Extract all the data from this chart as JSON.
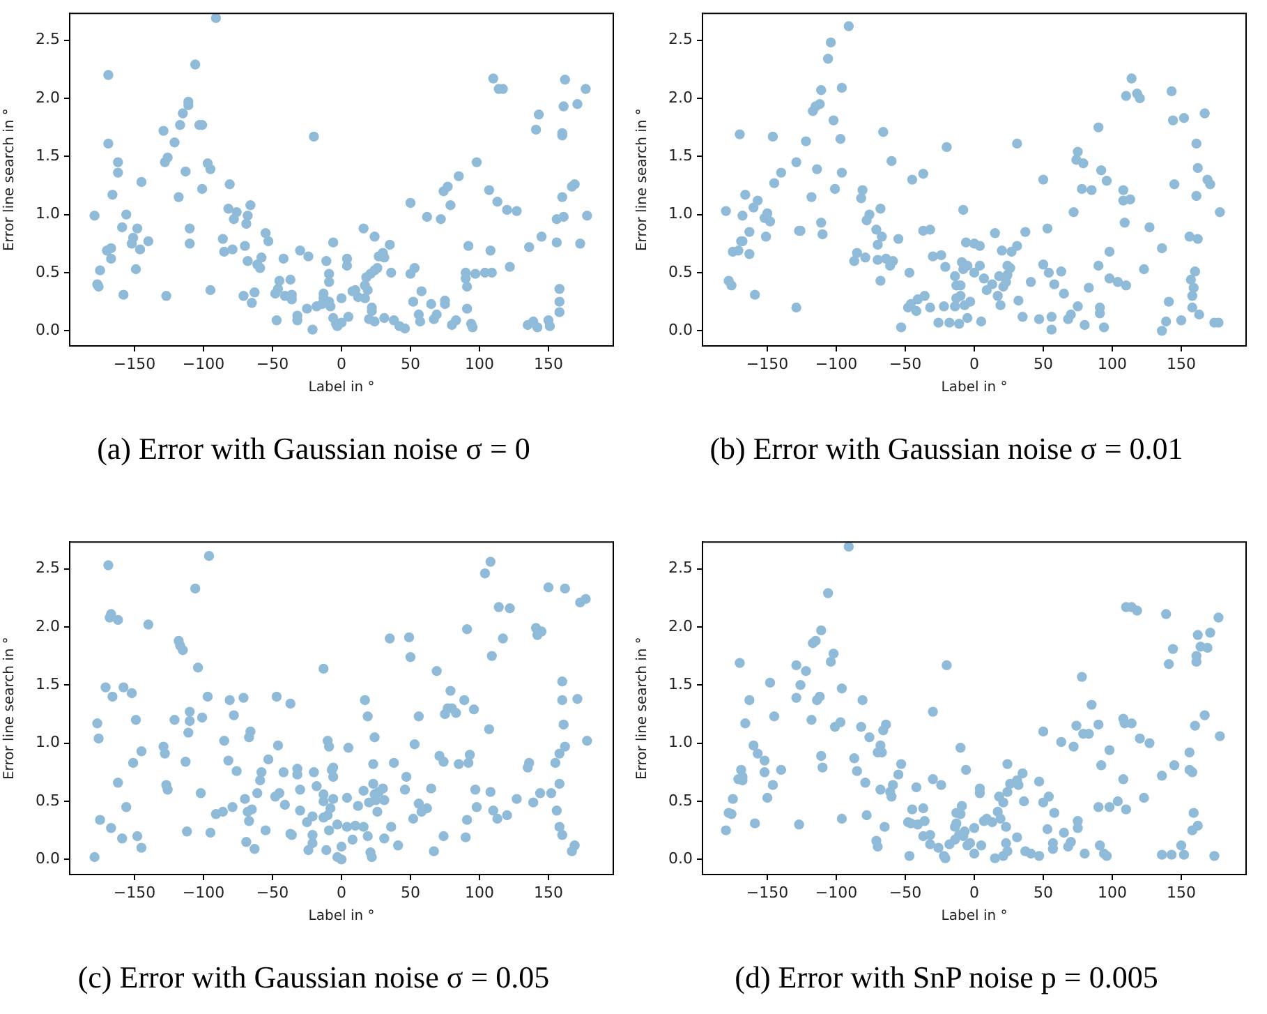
{
  "chart_data": [
    {
      "type": "scatter",
      "title": "(a) Error with Gaussian noise σ = 0",
      "xlabel": "Label in °",
      "ylabel": "Error line search in °",
      "marker": "circle",
      "grid": false,
      "xlim": [
        -197,
        197
      ],
      "xticks": [
        {
          "value": -150,
          "label": "−150"
        },
        {
          "value": -100,
          "label": "−100"
        },
        {
          "value": -50,
          "label": "−50"
        },
        0,
        50,
        100,
        150
      ],
      "ylim": [
        -0.13,
        2.73
      ],
      "yticks": [
        {
          "value": 0,
          "label": "0.0"
        },
        0.5,
        {
          "value": 1,
          "label": "1.0"
        },
        1.5,
        {
          "value": 2,
          "label": "2.0"
        },
        2.5
      ],
      "series": [
        {
          "color": "#8fbbd9",
          "x": [
            -179,
            -169,
            -169,
            -162,
            -162,
            -166,
            -177,
            -176,
            -175,
            -170,
            -167,
            -167,
            -158,
            -159,
            -156,
            -152,
            -151,
            -148,
            -149,
            -146,
            -145,
            -140,
            -129,
            -128,
            -126,
            -127,
            -121,
            -117,
            -118,
            -115,
            -113,
            -111,
            -111,
            -110,
            -110,
            -106,
            -103,
            -101,
            -101,
            -97,
            -95,
            -95,
            -91,
            -86,
            -85,
            -82,
            -81,
            -79,
            -78,
            -76,
            -71,
            -70,
            -69,
            -68,
            -68,
            -66,
            -65,
            -63,
            -61,
            -59,
            -58,
            -55,
            -53,
            -48,
            -47,
            -46,
            -45,
            -42,
            -41,
            -37,
            -36,
            -36,
            -32,
            -32,
            -30,
            -25,
            -24,
            -21,
            -20,
            -18,
            -13,
            -13,
            -14,
            -11,
            -9,
            -8,
            -9,
            -9,
            -6,
            -6,
            -4,
            -3,
            0,
            0,
            4,
            4,
            5,
            8,
            10,
            12,
            16,
            17,
            17,
            19,
            18,
            20,
            21,
            22,
            22,
            24,
            24,
            24,
            26,
            27,
            30,
            31,
            31,
            35,
            36,
            38,
            42,
            46,
            50,
            50,
            53,
            52,
            56,
            57,
            58,
            62,
            65,
            67,
            69,
            72,
            74,
            75,
            75,
            77,
            79,
            80,
            83,
            85,
            90,
            90,
            91,
            91,
            92,
            94,
            95,
            98,
            97,
            104,
            107,
            108,
            109,
            110,
            113,
            114,
            117,
            120,
            122,
            127,
            135,
            136,
            139,
            141,
            142,
            143,
            145,
            150,
            151,
            156,
            156,
            158,
            158,
            158,
            160,
            160,
            160,
            161,
            161,
            162,
            167,
            169,
            171,
            173,
            177,
            178
          ],
          "values": [
            0.99,
            2.2,
            1.61,
            1.45,
            1.36,
            1.17,
            0.4,
            0.38,
            0.52,
            0.69,
            0.71,
            0.62,
            0.31,
            0.89,
            1.0,
            0.75,
            0.8,
            0.88,
            0.53,
            0.7,
            1.28,
            0.77,
            1.72,
            1.45,
            1.49,
            0.3,
            1.62,
            1.77,
            1.15,
            1.87,
            1.37,
            1.97,
            1.94,
            0.88,
            0.75,
            2.29,
            1.77,
            1.77,
            1.22,
            1.44,
            1.39,
            0.35,
            2.69,
            0.79,
            0.68,
            1.05,
            1.26,
            0.7,
            0.96,
            1.02,
            0.3,
            0.73,
            0.92,
            0.99,
            0.6,
            1.08,
            0.24,
            0.33,
            0.57,
            0.54,
            0.63,
            0.84,
            0.77,
            0.32,
            0.09,
            0.36,
            0.43,
            0.62,
            0.3,
            0.44,
            0.31,
            0.27,
            0.13,
            0.09,
            0.69,
            0.19,
            0.64,
            0.01,
            1.67,
            0.21,
            0.32,
            0.28,
            0.23,
            0.6,
            0.25,
            0.21,
            0.49,
            0.42,
            0.76,
            0.11,
            0.06,
            0.04,
            0.07,
            0.28,
            0.62,
            0.56,
            0.12,
            0.34,
            0.35,
            0.29,
            0.88,
            0.39,
            0.28,
            0.35,
            0.46,
            0.1,
            0.49,
            0.2,
            0.17,
            0.81,
            0.08,
            0.52,
            0.54,
            0.64,
            0.67,
            0.63,
            0.11,
            0.74,
            0.5,
            0.09,
            0.04,
            0.02,
            1.1,
            0.49,
            0.54,
            0.25,
            0.14,
            0.08,
            0.34,
            0.98,
            0.23,
            0.1,
            0.14,
            0.96,
            1.2,
            0.26,
            0.23,
            1.24,
            1.08,
            0.05,
            0.09,
            1.33,
            0.5,
            0.45,
            0.38,
            0.19,
            0.73,
            0.06,
            0.03,
            1.45,
            0.49,
            0.5,
            1.21,
            0.69,
            0.5,
            2.17,
            1.11,
            2.08,
            2.08,
            1.04,
            0.55,
            1.03,
            0.05,
            0.72,
            0.08,
            1.73,
            0.03,
            1.86,
            0.81,
            0.09,
            0.04,
            0.76,
            0.96,
            0.25,
            0.16,
            0.36,
            1.15,
            1.7,
            1.68,
            1.93,
            0.98,
            2.16,
            1.24,
            1.26,
            1.95,
            0.75,
            2.08,
            0.99
          ]
        }
      ]
    },
    {
      "type": "scatter",
      "title": "(b) Error with Gaussian noise σ = 0.01",
      "xlabel": "Label in °",
      "ylabel": "Error line search in °",
      "marker": "circle",
      "grid": false,
      "xlim": [
        -197,
        197
      ],
      "xticks": [
        {
          "value": -150,
          "label": "−150"
        },
        {
          "value": -100,
          "label": "−100"
        },
        {
          "value": -50,
          "label": "−50"
        },
        0,
        50,
        100,
        150
      ],
      "ylim": [
        -0.13,
        2.73
      ],
      "yticks": [
        {
          "value": 0,
          "label": "0.0"
        },
        0.5,
        {
          "value": 1,
          "label": "1.0"
        },
        1.5,
        {
          "value": 2,
          "label": "2.0"
        },
        2.5
      ],
      "series": [
        {
          "color": "#8fbbd9",
          "x": [
            -180,
            -178,
            -176,
            -175,
            -171,
            -170,
            -169,
            -168,
            -168,
            -166,
            -163,
            -163,
            -160,
            -159,
            -157,
            -151,
            -152,
            -150,
            -148,
            -146,
            -145,
            -140,
            -129,
            -129,
            -127,
            -126,
            -122,
            -118,
            -117,
            -115,
            -114,
            -112,
            -111,
            -111,
            -110,
            -106,
            -104,
            -102,
            -101,
            -97,
            -96,
            -96,
            -91,
            -87,
            -85,
            -82,
            -81,
            -79,
            -78,
            -76,
            -71,
            -70,
            -70,
            -68,
            -68,
            -67,
            -66,
            -64,
            -61,
            -60,
            -59,
            -55,
            -53,
            -48,
            -47,
            -46,
            -45,
            -42,
            -41,
            -37,
            -37,
            -36,
            -32,
            -32,
            -30,
            -26,
            -24,
            -22,
            -21,
            -20,
            -18,
            -14,
            -14,
            -13,
            -13,
            -11,
            -10,
            -10,
            -9,
            -8,
            -8,
            -7,
            -6,
            -5,
            -5,
            -3,
            0,
            0,
            4,
            4,
            5,
            7,
            9,
            13,
            15,
            17,
            18,
            19,
            20,
            21,
            23,
            24,
            24,
            26,
            27,
            31,
            31,
            32,
            35,
            37,
            41,
            47,
            50,
            50,
            53,
            54,
            56,
            56,
            58,
            63,
            65,
            68,
            70,
            72,
            74,
            75,
            75,
            78,
            79,
            80,
            83,
            85,
            90,
            90,
            91,
            91,
            92,
            94,
            96,
            98,
            98,
            104,
            108,
            108,
            109,
            110,
            110,
            113,
            114,
            118,
            120,
            123,
            127,
            136,
            136,
            139,
            141,
            143,
            144,
            145,
            150,
            152,
            156,
            157,
            158,
            158,
            159,
            160,
            161,
            161,
            162,
            162,
            163,
            167,
            169,
            171,
            174,
            177,
            178
          ],
          "values": [
            1.03,
            0.43,
            0.39,
            0.68,
            0.69,
            1.69,
            0.77,
            0.99,
            0.77,
            1.17,
            0.66,
            0.85,
            1.06,
            0.31,
            1.12,
            0.81,
            0.97,
            1.01,
            0.94,
            1.67,
            1.27,
            1.36,
            0.2,
            1.45,
            0.86,
            0.86,
            1.63,
            1.15,
            1.89,
            1.93,
            1.39,
            1.95,
            2.07,
            0.93,
            0.83,
            2.34,
            2.48,
            1.81,
            1.22,
            1.65,
            2.09,
            1.36,
            2.62,
            0.6,
            0.67,
            1.14,
            1.21,
            0.63,
            0.95,
            1.0,
            0.87,
            0.61,
            0.74,
            0.43,
            1.05,
            0.81,
            1.71,
            0.62,
            0.56,
            1.46,
            0.6,
            0.79,
            0.03,
            0.2,
            0.5,
            0.23,
            1.3,
            0.17,
            0.27,
            0.86,
            1.35,
            0.3,
            0.2,
            0.87,
            0.64,
            0.07,
            0.65,
            0.21,
            0.55,
            1.58,
            0.07,
            0.47,
            0.21,
            0.39,
            0.28,
            0.06,
            0.39,
            0.3,
            0.59,
            0.53,
            1.04,
            0.22,
            0.76,
            0.11,
            0.56,
            0.25,
            0.75,
            0.5,
            0.73,
            0.56,
            0.08,
            0.45,
            0.35,
            0.4,
            0.84,
            0.3,
            0.47,
            0.22,
            0.69,
            0.38,
            0.42,
            0.56,
            0.48,
            0.54,
            0.68,
            0.73,
            1.61,
            0.26,
            0.12,
            0.85,
            0.42,
            0.1,
            0.57,
            1.3,
            0.88,
            0.5,
            0.01,
            0.12,
            0.4,
            0.51,
            0.32,
            0.1,
            0.14,
            1.02,
            1.47,
            1.54,
            0.21,
            1.22,
            1.44,
            0.05,
            0.37,
            1.21,
            1.75,
            0.56,
            0.2,
            0.15,
            1.38,
            0.03,
            1.29,
            0.68,
            0.45,
            0.42,
            1.21,
            1.12,
            0.93,
            0.39,
            2.02,
            1.13,
            2.17,
            2.04,
            2.0,
            0.53,
            0.89,
            0.0,
            0.71,
            0.08,
            0.25,
            2.06,
            1.81,
            1.26,
            0.09,
            1.83,
            0.81,
            0.44,
            0.3,
            0.2,
            0.37,
            0.51,
            1.61,
            1.16,
            0.79,
            1.4,
            0.14,
            1.87,
            1.3,
            1.26,
            0.07,
            0.07,
            1.02
          ]
        }
      ]
    },
    {
      "type": "scatter",
      "title": "(c) Error with Gaussian noise σ = 0.05",
      "xlabel": "Label in °",
      "ylabel": "Error line search in °",
      "marker": "circle",
      "grid": false,
      "xlim": [
        -197,
        197
      ],
      "xticks": [
        {
          "value": -150,
          "label": "−150"
        },
        {
          "value": -100,
          "label": "−100"
        },
        {
          "value": -50,
          "label": "−50"
        },
        0,
        50,
        100,
        150
      ],
      "ylim": [
        -0.13,
        2.73
      ],
      "yticks": [
        {
          "value": 0,
          "label": "0.0"
        },
        0.5,
        {
          "value": 1,
          "label": "1.0"
        },
        1.5,
        {
          "value": 2,
          "label": "2.0"
        },
        2.5
      ],
      "series": [
        {
          "color": "#8fbbd9",
          "x": [
            -179,
            -177,
            -176,
            -175,
            -171,
            -169,
            -168,
            -167,
            -167,
            -166,
            -162,
            -162,
            -159,
            -158,
            -156,
            -152,
            -151,
            -149,
            -148,
            -145,
            -145,
            -140,
            -129,
            -128,
            -127,
            -126,
            -121,
            -118,
            -117,
            -115,
            -113,
            -112,
            -111,
            -110,
            -110,
            -106,
            -104,
            -102,
            -101,
            -97,
            -96,
            -95,
            -91,
            -86,
            -85,
            -82,
            -81,
            -79,
            -78,
            -76,
            -71,
            -70,
            -69,
            -68,
            -67,
            -67,
            -66,
            -65,
            -63,
            -61,
            -59,
            -58,
            -55,
            -53,
            -48,
            -47,
            -46,
            -45,
            -42,
            -41,
            -37,
            -37,
            -36,
            -32,
            -32,
            -30,
            -30,
            -25,
            -24,
            -21,
            -21,
            -21,
            -20,
            -18,
            -13,
            -13,
            -13,
            -13,
            -11,
            -10,
            -10,
            -9,
            -9,
            -8,
            -7,
            -6,
            -6,
            -6,
            -3,
            -3,
            0,
            0,
            5,
            4,
            4,
            8,
            10,
            12,
            16,
            16,
            17,
            19,
            19,
            20,
            21,
            22,
            23,
            23,
            24,
            24,
            25,
            26,
            27,
            30,
            31,
            31,
            35,
            36,
            38,
            41,
            47,
            46,
            49,
            50,
            53,
            52,
            56,
            56,
            58,
            62,
            65,
            67,
            69,
            71,
            74,
            74,
            75,
            77,
            79,
            80,
            83,
            85,
            89,
            90,
            91,
            91,
            92,
            93,
            96,
            97,
            98,
            104,
            107,
            108,
            108,
            109,
            110,
            113,
            114,
            117,
            120,
            122,
            127,
            135,
            136,
            139,
            141,
            142,
            144,
            145,
            150,
            152,
            155,
            156,
            158,
            158,
            158,
            160,
            160,
            160,
            161,
            162,
            162,
            167,
            169,
            171,
            173,
            177,
            178
          ],
          "values": [
            0.02,
            1.17,
            1.04,
            0.34,
            1.48,
            2.53,
            2.08,
            2.11,
            0.27,
            1.4,
            2.06,
            0.66,
            0.18,
            1.48,
            0.45,
            1.43,
            0.83,
            1.2,
            0.2,
            0.1,
            0.93,
            2.02,
            0.97,
            0.91,
            0.64,
            0.6,
            1.2,
            1.88,
            1.84,
            1.8,
            0.84,
            0.24,
            1.09,
            1.19,
            1.27,
            2.33,
            1.65,
            0.57,
            1.22,
            1.4,
            2.61,
            0.23,
            0.39,
            0.41,
            1.02,
            0.85,
            1.37,
            0.45,
            1.24,
            0.76,
            1.39,
            0.52,
            0.15,
            0.41,
            1.05,
            0.33,
            1.1,
            0.43,
            0.09,
            0.57,
            0.68,
            0.75,
            0.25,
            0.86,
            0.54,
            1.4,
            0.98,
            0.57,
            0.75,
            0.47,
            1.34,
            0.22,
            0.21,
            0.78,
            0.73,
            0.6,
            0.42,
            0.32,
            0.08,
            0.37,
            0.21,
            0.14,
            0.75,
            0.63,
            1.64,
            0.56,
            0.5,
            0.36,
            0.08,
            0.38,
            1.02,
            0.97,
            0.25,
            0.44,
            0.77,
            0.52,
            0.79,
            0.71,
            0.3,
            0.02,
            0.0,
            0.11,
            0.96,
            0.53,
            0.28,
            0.17,
            0.29,
            0.46,
            0.59,
            0.28,
            1.37,
            1.23,
            0.2,
            0.49,
            0.06,
            0.02,
            0.65,
            0.82,
            1.05,
            0.56,
            0.51,
            0.41,
            0.58,
            0.61,
            0.18,
            0.51,
            1.9,
            0.28,
            0.83,
            0.12,
            0.71,
            0.6,
            1.91,
            1.74,
            0.99,
            0.35,
            1.23,
            0.48,
            0.41,
            0.44,
            0.61,
            0.07,
            1.62,
            0.89,
            0.84,
            0.2,
            1.25,
            1.3,
            1.45,
            1.3,
            1.26,
            0.82,
            1.37,
            0.19,
            0.34,
            1.98,
            0.83,
            0.9,
            1.29,
            0.6,
            0.45,
            2.46,
            1.12,
            0.58,
            2.56,
            1.75,
            0.42,
            0.35,
            2.17,
            1.9,
            0.38,
            2.16,
            0.52,
            0.79,
            0.83,
            0.49,
            1.99,
            1.93,
            0.57,
            1.96,
            2.34,
            0.57,
            0.83,
            0.42,
            0.28,
            0.91,
            0.65,
            1.53,
            1.37,
            0.21,
            1.16,
            0.97,
            2.33,
            0.07,
            0.12,
            1.38,
            2.21,
            2.24,
            1.02
          ]
        }
      ]
    },
    {
      "type": "scatter",
      "title": "(d) Error with SnP noise p = 0.005",
      "xlabel": "Label in °",
      "ylabel": "Error line search in °",
      "marker": "circle",
      "grid": false,
      "xlim": [
        -197,
        197
      ],
      "xticks": [
        {
          "value": -150,
          "label": "−150"
        },
        {
          "value": -100,
          "label": "−100"
        },
        {
          "value": -50,
          "label": "−50"
        },
        0,
        50,
        100,
        150
      ],
      "ylim": [
        -0.13,
        2.73
      ],
      "yticks": [
        {
          "value": 0,
          "label": "0.0"
        },
        0.5,
        {
          "value": 1,
          "label": "1.0"
        },
        1.5,
        {
          "value": 2,
          "label": "2.0"
        },
        2.5
      ],
      "series": [
        {
          "color": "#8fbbd9",
          "x": [
            -180,
            -178,
            -176,
            -175,
            -171,
            -170,
            -169,
            -168,
            -168,
            -166,
            -163,
            -160,
            -159,
            -157,
            -152,
            -152,
            -150,
            -148,
            -146,
            -145,
            -140,
            -129,
            -129,
            -127,
            -126,
            -122,
            -118,
            -117,
            -115,
            -114,
            -112,
            -111,
            -111,
            -110,
            -106,
            -104,
            -102,
            -101,
            -97,
            -96,
            -96,
            -91,
            -87,
            -85,
            -82,
            -81,
            -79,
            -78,
            -76,
            -71,
            -70,
            -70,
            -68,
            -68,
            -67,
            -66,
            -65,
            -64,
            -61,
            -60,
            -59,
            -55,
            -53,
            -48,
            -47,
            -46,
            -45,
            -42,
            -41,
            -37,
            -37,
            -36,
            -32,
            -32,
            -30,
            -30,
            -26,
            -24,
            -22,
            -21,
            -20,
            -18,
            -14,
            -14,
            -13,
            -13,
            -11,
            -10,
            -10,
            -9,
            -8,
            -7,
            -6,
            -5,
            -3,
            0,
            0,
            4,
            4,
            5,
            7,
            9,
            13,
            15,
            17,
            18,
            19,
            21,
            21,
            23,
            24,
            24,
            23,
            24,
            26,
            31,
            31,
            32,
            35,
            36,
            37,
            41,
            47,
            47,
            50,
            50,
            53,
            54,
            57,
            57,
            58,
            63,
            65,
            68,
            70,
            72,
            74,
            75,
            75,
            78,
            79,
            80,
            83,
            85,
            90,
            90,
            91,
            92,
            94,
            96,
            98,
            98,
            104,
            108,
            108,
            109,
            110,
            110,
            114,
            114,
            118,
            120,
            123,
            127,
            136,
            136,
            139,
            141,
            143,
            144,
            145,
            150,
            152,
            156,
            156,
            158,
            158,
            159,
            160,
            161,
            161,
            162,
            162,
            164,
            167,
            169,
            171,
            174,
            177,
            178
          ],
          "values": [
            0.25,
            0.4,
            0.39,
            0.52,
            0.69,
            1.69,
            0.77,
            0.71,
            0.68,
            1.17,
            1.37,
            0.98,
            0.31,
            0.91,
            0.85,
            0.75,
            0.53,
            1.52,
            0.64,
            1.23,
            0.77,
            1.67,
            1.39,
            0.3,
            1.5,
            1.62,
            1.2,
            1.86,
            1.88,
            1.37,
            1.4,
            1.97,
            0.89,
            0.79,
            2.29,
            1.7,
            1.77,
            1.14,
            1.18,
            1.47,
            0.35,
            2.69,
            0.87,
            0.76,
            1.14,
            1.37,
            0.66,
            0.38,
            1.05,
            0.16,
            0.11,
            0.92,
            0.6,
            0.98,
            0.92,
            1.11,
            0.28,
            1.16,
            0.58,
            0.54,
            0.64,
            0.73,
            0.82,
            0.32,
            0.03,
            0.31,
            0.43,
            0.62,
            0.3,
            0.2,
            0.44,
            0.33,
            0.21,
            0.13,
            0.69,
            1.27,
            0.1,
            0.64,
            0.03,
            0.01,
            1.67,
            0.13,
            0.17,
            0.28,
            0.4,
            0.31,
            0.21,
            0.39,
            0.96,
            0.46,
            0.2,
            0.24,
            0.77,
            0.12,
            0.14,
            0.27,
            0.05,
            0.61,
            0.57,
            0.12,
            0.33,
            0.35,
            0.32,
            0.01,
            0.41,
            0.54,
            0.35,
            0.03,
            0.49,
            0.14,
            0.82,
            0.07,
            0.28,
            0.58,
            0.65,
            0.68,
            0.19,
            0.64,
            0.74,
            0.5,
            0.07,
            0.05,
            0.03,
            0.67,
            0.49,
            1.1,
            0.26,
            0.54,
            0.09,
            0.14,
            0.4,
            1.01,
            0.23,
            0.11,
            0.15,
            0.97,
            1.15,
            0.33,
            0.27,
            1.57,
            1.08,
            0.05,
            1.08,
            1.33,
            1.16,
            0.45,
            0.12,
            0.81,
            0.05,
            0.03,
            0.94,
            0.45,
            0.5,
            1.21,
            0.69,
            1.17,
            0.43,
            2.17,
            1.17,
            2.17,
            2.14,
            1.04,
            0.53,
            1.0,
            0.04,
            0.72,
            2.11,
            1.68,
            0.04,
            1.81,
            0.81,
            0.12,
            0.04,
            0.92,
            0.77,
            0.75,
            0.25,
            0.4,
            1.15,
            1.75,
            1.7,
            0.29,
            1.93,
            1.83,
            1.24,
            1.82,
            1.95,
            0.03,
            2.08,
            1.06
          ]
        }
      ]
    }
  ]
}
